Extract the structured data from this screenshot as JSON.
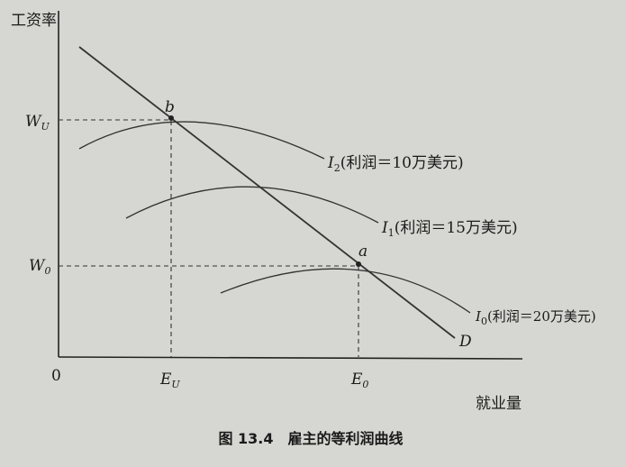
{
  "axes": {
    "y_label": "工资率",
    "x_label": "就业量",
    "origin": "0"
  },
  "points": {
    "b": "b",
    "a": "a"
  },
  "demand_label": "D",
  "levels": {
    "wu": {
      "base": "W",
      "sub": "U"
    },
    "w0": {
      "base": "W",
      "sub": "0"
    },
    "eu": {
      "base": "E",
      "sub": "U"
    },
    "e0": {
      "base": "E",
      "sub": "0"
    }
  },
  "curves": [
    {
      "symbol": "I",
      "sub": "2",
      "text": "(利润＝10万美元)"
    },
    {
      "symbol": "I",
      "sub": "1",
      "text": "(利润＝15万美元)"
    },
    {
      "symbol": "I",
      "sub": "0",
      "text": "(利润＝20万美元)"
    }
  ],
  "caption": "图 13.4　雇主的等利润曲线"
}
